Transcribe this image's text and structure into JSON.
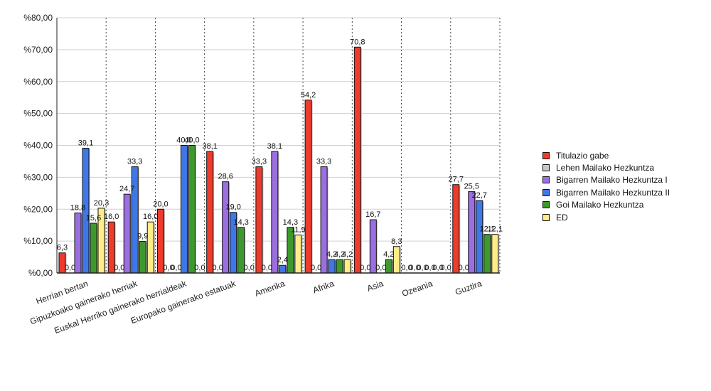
{
  "chart_data": {
    "type": "bar",
    "title": "",
    "xlabel": "",
    "ylabel": "",
    "ylim": [
      0,
      80
    ],
    "ytick_labels": [
      "%0,00",
      "%10,00",
      "%20,00",
      "%30,00",
      "%40,00",
      "%50,00",
      "%60,00",
      "%70,00",
      "%80,00"
    ],
    "grid": true,
    "legend_position": "right",
    "categories": [
      "Herrian bertan",
      "Gipuzkoako gainerako herriak",
      "Euskal Herriko gainerako herrialdeak",
      "Europako gainerako estatuak",
      "Amerika",
      "Afrika",
      "Asia",
      "Ozeania",
      "Guztira"
    ],
    "series": [
      {
        "name": "Titulazio gabe",
        "color": "#ee3b2c",
        "values": [
          6.3,
          16.0,
          20.0,
          38.1,
          33.3,
          54.2,
          70.8,
          0.0,
          27.7
        ],
        "labels": [
          "6,3",
          "16,0",
          "20,0",
          "38,1",
          "33,3",
          "54,2",
          "70,8",
          "0,0",
          "27,7"
        ]
      },
      {
        "name": "Lehen Mailako Hezkuntza",
        "color": "#c8c8c8",
        "values": [
          0.0,
          0.0,
          0.0,
          0.0,
          0.0,
          0.0,
          0.0,
          0.0,
          0.0
        ],
        "labels": [
          "0,0",
          "0,0",
          "0,0",
          "0,0",
          "0,0",
          "0,0",
          "0,0",
          "0,0",
          "0,0"
        ]
      },
      {
        "name": "Bigarren Mailako Hezkuntza I",
        "color": "#9b6fe0",
        "values": [
          18.8,
          24.7,
          0.0,
          28.6,
          38.1,
          33.3,
          16.7,
          0.0,
          25.5
        ],
        "labels": [
          "18,8",
          "24,7",
          "0,0",
          "28,6",
          "38,1",
          "33,3",
          "16,7",
          "0,0",
          "25,5"
        ]
      },
      {
        "name": "Bigarren Mailako Hezkuntza II",
        "color": "#3f78e6",
        "values": [
          39.1,
          33.3,
          40.0,
          19.0,
          2.4,
          4.2,
          0.0,
          0.0,
          22.7
        ],
        "labels": [
          "39,1",
          "33,3",
          "40,0",
          "19,0",
          "2,4",
          "4,2",
          "0,0",
          "0,0",
          "22,7"
        ]
      },
      {
        "name": "Goi Mailako Hezkuntza",
        "color": "#3c9a2c",
        "values": [
          15.6,
          9.9,
          40.0,
          14.3,
          14.3,
          4.2,
          4.2,
          0.0,
          12.1
        ],
        "labels": [
          "15,6",
          "9,9",
          "40,0",
          "14,3",
          "14,3",
          "4,2",
          "4,2",
          "0,0",
          "12,1"
        ]
      },
      {
        "name": "ED",
        "color": "#ffee88",
        "values": [
          20.3,
          16.0,
          0.0,
          0.0,
          11.9,
          4.2,
          8.3,
          0.0,
          12.1
        ],
        "labels": [
          "20,3",
          "16,0",
          "0,0",
          "0,0",
          "11,9",
          "4,2",
          "8,3",
          "0,0",
          "12,1"
        ]
      }
    ]
  }
}
